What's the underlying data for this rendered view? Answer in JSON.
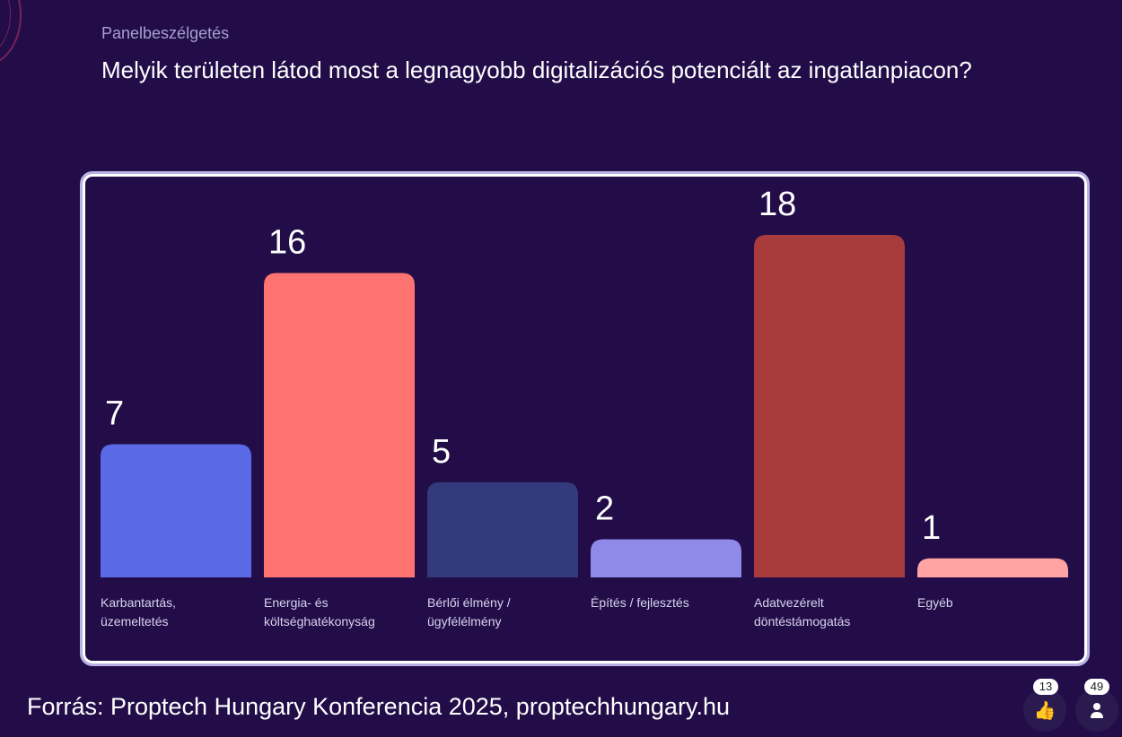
{
  "header": {
    "subtitle": "Panelbeszélgetés",
    "question": "Melyik területen látod most a legnagyobb digitalizációs potenciált az ingatlanpiacon?"
  },
  "chart_data": {
    "type": "bar",
    "categories": [
      [
        "Karbantartás,",
        "üzemeltetés"
      ],
      [
        "Energia- és",
        "költséghatékonyság"
      ],
      [
        "Bérlői élmény /",
        "ügyfélélmény"
      ],
      [
        "Építés / fejlesztés"
      ],
      [
        "Adatvezérelt",
        "döntéstámogatás"
      ],
      [
        "Egyéb"
      ]
    ],
    "values": [
      7,
      16,
      5,
      2,
      18,
      1
    ],
    "colors": [
      "#5a6ae6",
      "#ff7370",
      "#343b7d",
      "#8f8ae8",
      "#a83c3c",
      "#ffa3a3"
    ],
    "title": "",
    "xlabel": "",
    "ylabel": "",
    "grid": false
  },
  "footer": {
    "source": "Forrás: Proptech Hungary Konferencia 2025, proptechhungary.hu"
  },
  "reactions": {
    "likes": "13",
    "participants": "49"
  }
}
